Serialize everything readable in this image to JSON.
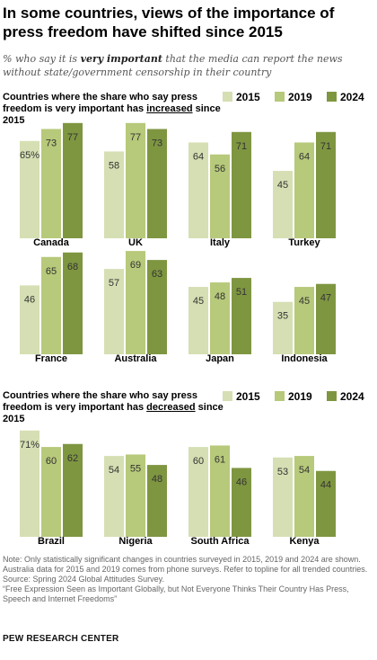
{
  "title": "In some countries, views of the importance of press freedom have shifted since 2015",
  "subtitle": {
    "before": "% who say it is ",
    "emphasis": "very important",
    "after": " that the media can report the news without state/government censorship in their country"
  },
  "colors": {
    "2015": "#d5dfb3",
    "2019": "#b7c97a",
    "2024": "#7f9641"
  },
  "legend": [
    "2015",
    "2019",
    "2024"
  ],
  "sections": [
    {
      "heading_before": "Countries where the share who say press freedom is very important has ",
      "heading_keyword": "increased",
      "heading_after": " since 2015"
    },
    {
      "heading_before": "Countries where the share who say press freedom is very important has ",
      "heading_keyword": "decreased",
      "heading_after": " since 2015"
    }
  ],
  "chart_data": {
    "type": "bar",
    "series_names": [
      "2015",
      "2019",
      "2024"
    ],
    "groups": [
      {
        "country": "Canada",
        "values": [
          65,
          73,
          77
        ],
        "labels": [
          "65%",
          "73",
          "77"
        ]
      },
      {
        "country": "UK",
        "values": [
          58,
          77,
          73
        ],
        "labels": [
          "58",
          "77",
          "73"
        ]
      },
      {
        "country": "Italy",
        "values": [
          64,
          56,
          71
        ],
        "labels": [
          "64",
          "56",
          "71"
        ]
      },
      {
        "country": "Turkey",
        "values": [
          45,
          64,
          71
        ],
        "labels": [
          "45",
          "64",
          "71"
        ]
      },
      {
        "country": "France",
        "values": [
          46,
          65,
          68
        ],
        "labels": [
          "46",
          "65",
          "68"
        ]
      },
      {
        "country": "Australia",
        "values": [
          57,
          69,
          63
        ],
        "labels": [
          "57",
          "69",
          "63"
        ]
      },
      {
        "country": "Japan",
        "values": [
          45,
          48,
          51
        ],
        "labels": [
          "45",
          "48",
          "51"
        ]
      },
      {
        "country": "Indonesia",
        "values": [
          35,
          45,
          47
        ],
        "labels": [
          "35",
          "45",
          "47"
        ]
      },
      {
        "country": "Brazil",
        "values": [
          71,
          60,
          62
        ],
        "labels": [
          "71%",
          "60",
          "62"
        ]
      },
      {
        "country": "Nigeria",
        "values": [
          54,
          55,
          48
        ],
        "labels": [
          "54",
          "55",
          "48"
        ]
      },
      {
        "country": "South Africa",
        "values": [
          60,
          61,
          46
        ],
        "labels": [
          "60",
          "61",
          "46"
        ]
      },
      {
        "country": "Kenya",
        "values": [
          53,
          54,
          44
        ],
        "labels": [
          "53",
          "54",
          "44"
        ]
      }
    ],
    "ylim": [
      0,
      100
    ]
  },
  "notes": {
    "note": "Note: Only statistically significant changes in countries surveyed in 2015, 2019 and 2024 are shown. Australia data for 2015 and 2019 comes from phone surveys. Refer to topline for all trended countries.",
    "source": "Source: Spring 2024 Global Attitudes Survey.",
    "report": "“Free Expression Seen as Important Globally, but Not Everyone Thinks Their Country Has Press, Speech and Internet Freedoms”"
  },
  "brand": "PEW RESEARCH CENTER"
}
